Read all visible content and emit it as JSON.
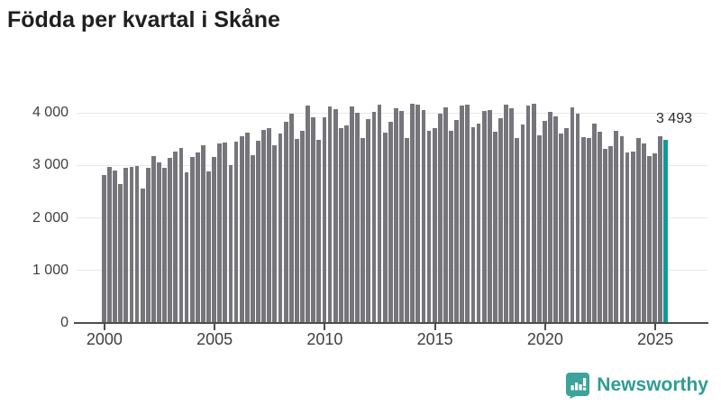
{
  "title": "Födda per kvartal i Skåne",
  "chart_data": {
    "type": "bar",
    "title": "Födda per kvartal i Skåne",
    "xlabel": "",
    "ylabel": "",
    "x_start": "2000 Q1",
    "x_end": "2025 Q3",
    "ylim": [
      0,
      4400
    ],
    "grid": "horizontal",
    "bar_color": "#75757b",
    "highlight_color": "#109a97",
    "axis_color": "#4d4d4d",
    "gridline_color": "#e8e8e8",
    "yticks": [
      {
        "value": 0,
        "label": "0"
      },
      {
        "value": 1000,
        "label": "1 000"
      },
      {
        "value": 2000,
        "label": "2 000"
      },
      {
        "value": 3000,
        "label": "3 000"
      },
      {
        "value": 4000,
        "label": "4 000"
      }
    ],
    "xticks": [
      {
        "year": 2000,
        "label": "2000"
      },
      {
        "year": 2005,
        "label": "2005"
      },
      {
        "year": 2010,
        "label": "2010"
      },
      {
        "year": 2015,
        "label": "2015"
      },
      {
        "year": 2020,
        "label": "2020"
      },
      {
        "year": 2025,
        "label": "2025"
      }
    ],
    "series": [
      {
        "name": "Födda per kvartal",
        "values": [
          2823,
          2977,
          2908,
          2651,
          2948,
          2971,
          2994,
          2565,
          2948,
          3177,
          3063,
          2951,
          3137,
          3269,
          3338,
          2868,
          3166,
          3252,
          3383,
          2891,
          3154,
          3411,
          3439,
          3010,
          3456,
          3559,
          3617,
          3199,
          3468,
          3674,
          3702,
          3382,
          3600,
          3828,
          3983,
          3496,
          3657,
          4132,
          3914,
          3485,
          3914,
          4114,
          4074,
          3714,
          3754,
          4114,
          4000,
          3514,
          3886,
          4017,
          4155,
          3617,
          3828,
          4086,
          4029,
          3514,
          4172,
          4155,
          4057,
          3650,
          3714,
          3983,
          4097,
          3657,
          3868,
          4132,
          4155,
          3731,
          3800,
          4040,
          4057,
          3640,
          3903,
          4155,
          4086,
          3525,
          3771,
          4132,
          4172,
          3571,
          3845,
          4017,
          3926,
          3600,
          3714,
          4097,
          3983,
          3542,
          3525,
          3790,
          3635,
          3320,
          3370,
          3650,
          3560,
          3240,
          3260,
          3520,
          3410,
          3170,
          3225,
          3560,
          3493
        ]
      }
    ],
    "highlight": {
      "index_last": true,
      "label": "3 493",
      "value": 3493
    }
  },
  "footer": {
    "brand": "Newsworthy",
    "icon": "newsworthy-bubble-barchart-icon",
    "icon_color": "#3ba39a",
    "text_color": "#2f9c93"
  }
}
